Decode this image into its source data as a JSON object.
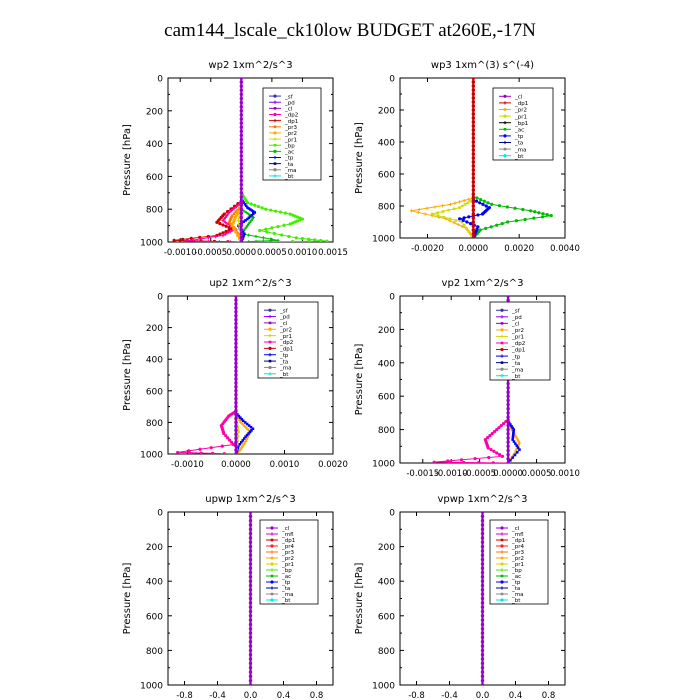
{
  "title": "cam144_lscale_ck10low  BUDGET at260E,-17N",
  "colors": {
    "bt": "#00e5e5",
    "ma": "#888888",
    "ta": "#00008b",
    "tp": "#0000ff",
    "ac": "#00bb00",
    "bp": "#44ee00",
    "pr1": "#ccdd00",
    "pr2": "#ffaa00",
    "pr3": "#ff7700",
    "pr4": "#ff2222",
    "dp1": "#cc0000",
    "dp2": "#ff00aa",
    "cl": "#9900cc",
    "pd": "#8800ff",
    "sf": "#3333aa",
    "mfl": "#cc00cc"
  },
  "chart_data": [
    {
      "type": "line",
      "title": "wp2   1xm^2/s^3",
      "ylabel": "Pressure [hPa]",
      "ylim": [
        1000,
        0
      ],
      "xlim": [
        -0.0012,
        0.0015
      ],
      "xticks": [
        "-0.0010",
        "-0.0005",
        "0.0000",
        "0.0005",
        "0.0010",
        "0.0015"
      ],
      "xtick_values": [
        -0.001,
        -0.0005,
        0,
        0.0005,
        0.001,
        0.0015
      ],
      "yticks": [
        "0",
        "200",
        "400",
        "600",
        "800",
        "1000"
      ],
      "legend": [
        "_sf",
        "_pd",
        "_cl",
        "_dp2",
        "_dp1",
        "_pr3",
        "_pr2",
        "_pr1",
        "_bp",
        "_ac",
        "_tp",
        "_ta",
        "_ma",
        "_bt"
      ],
      "series": [
        {
          "key": "bp",
          "points": [
            [
              0,
              700
            ],
            [
              0.0001,
              760
            ],
            [
              0.0004,
              800
            ],
            [
              0.0008,
              830
            ],
            [
              0.001,
              860
            ],
            [
              0.0008,
              890
            ],
            [
              0.0003,
              930
            ],
            [
              0.0009,
              975
            ],
            [
              0.0014,
              995
            ],
            [
              0,
              1000
            ]
          ]
        },
        {
          "key": "ac",
          "points": [
            [
              0,
              800
            ],
            [
              0.0002,
              850
            ],
            [
              0.0001,
              900
            ],
            [
              0,
              950
            ],
            [
              0.0006,
              990
            ],
            [
              0,
              1000
            ]
          ]
        },
        {
          "key": "tp",
          "points": [
            [
              0,
              740
            ],
            [
              0.0001,
              790
            ],
            [
              0.00022,
              820
            ],
            [
              0.0001,
              860
            ],
            [
              -5e-05,
              900
            ],
            [
              5e-05,
              950
            ],
            [
              0,
              1000
            ]
          ]
        },
        {
          "key": "dp1",
          "points": [
            [
              0,
              750
            ],
            [
              -0.00028,
              830
            ],
            [
              -0.0004,
              880
            ],
            [
              -0.00015,
              920
            ],
            [
              -0.0004,
              960
            ],
            [
              -0.0011,
              990
            ],
            [
              0,
              1000
            ]
          ]
        },
        {
          "key": "dp2",
          "points": [
            [
              0,
              760
            ],
            [
              -0.0002,
              820
            ],
            [
              -0.0003,
              870
            ],
            [
              -0.0001,
              920
            ],
            [
              -0.0003,
              960
            ],
            [
              -0.0009,
              995
            ],
            [
              0,
              1000
            ]
          ]
        },
        {
          "key": "pr3",
          "points": [
            [
              0,
              780
            ],
            [
              -0.00015,
              840
            ],
            [
              -0.0002,
              880
            ],
            [
              -8e-05,
              930
            ],
            [
              0,
              1000
            ]
          ]
        },
        {
          "key": "pr2",
          "points": [
            [
              0,
              790
            ],
            [
              -0.0001,
              850
            ],
            [
              -0.00015,
              900
            ],
            [
              0,
              1000
            ]
          ]
        },
        {
          "key": "pr1",
          "points": [
            [
              0,
              800
            ],
            [
              -5e-05,
              870
            ],
            [
              0,
              1000
            ]
          ]
        },
        {
          "key": "cl",
          "points": [
            [
              0,
              0
            ],
            [
              0,
              1000
            ]
          ]
        }
      ]
    },
    {
      "type": "line",
      "title": "wp3   1xm^(3) s^(-4)",
      "ylabel": "Pressure [hPa]",
      "ylim": [
        1000,
        0
      ],
      "xlim": [
        -0.0032,
        0.004
      ],
      "xticks": [
        "-0.0020",
        "0.0000",
        "0.0020",
        "0.0040"
      ],
      "xtick_values": [
        -0.002,
        0,
        0.002,
        0.004
      ],
      "yticks": [
        "0",
        "200",
        "400",
        "600",
        "800",
        "1000"
      ],
      "legend": [
        "_cl",
        "_dp1",
        "_pr2",
        "_pr1",
        "_bp1",
        "_ac",
        "_tp",
        "_ta",
        "_ma",
        "_bt"
      ],
      "series": [
        {
          "key": "ac",
          "points": [
            [
              0,
              740
            ],
            [
              0.0008,
              790
            ],
            [
              0.0025,
              830
            ],
            [
              0.0034,
              860
            ],
            [
              0.0015,
              900
            ],
            [
              0.0003,
              950
            ],
            [
              0,
              1000
            ]
          ]
        },
        {
          "key": "pr2",
          "points": [
            [
              0,
              750
            ],
            [
              -0.001,
              790
            ],
            [
              -0.0027,
              830
            ],
            [
              -0.0012,
              880
            ],
            [
              -0.0003,
              940
            ],
            [
              0,
              1000
            ]
          ]
        },
        {
          "key": "pr1",
          "points": [
            [
              0,
              760
            ],
            [
              -0.0006,
              810
            ],
            [
              -0.0018,
              850
            ],
            [
              -0.0005,
              900
            ],
            [
              0,
              1000
            ]
          ]
        },
        {
          "key": "tp",
          "points": [
            [
              0,
              760
            ],
            [
              0.0007,
              810
            ],
            [
              0.0004,
              850
            ],
            [
              -0.0006,
              880
            ],
            [
              0.0002,
              930
            ],
            [
              0,
              1000
            ]
          ]
        },
        {
          "key": "dp1",
          "points": [
            [
              0,
              0
            ],
            [
              0,
              1000
            ]
          ]
        }
      ]
    },
    {
      "type": "line",
      "title": "up2   1xm^2/s^3",
      "ylabel": "Pressure [hPa]",
      "ylim": [
        1000,
        0
      ],
      "xlim": [
        -0.0014,
        0.002
      ],
      "xticks": [
        "-0.0010",
        "0.0000",
        "0.0010",
        "0.0020"
      ],
      "xtick_values": [
        -0.001,
        0,
        0.001,
        0.002
      ],
      "yticks": [
        "0",
        "200",
        "400",
        "600",
        "800",
        "1000"
      ],
      "legend": [
        "_sf",
        "_pd",
        "_cl",
        "_pr2",
        "_pr1",
        "_dp2",
        "_dp1",
        "_tp",
        "_ta",
        "_ma",
        "_bt"
      ],
      "series": [
        {
          "key": "dp2",
          "points": [
            [
              0,
              730
            ],
            [
              -0.00015,
              760
            ],
            [
              -0.0003,
              820
            ],
            [
              -0.00025,
              870
            ],
            [
              -5e-05,
              940
            ],
            [
              -0.0012,
              990
            ],
            [
              0,
              1000
            ]
          ]
        },
        {
          "key": "pr2",
          "points": [
            [
              0,
              740
            ],
            [
              0.0001,
              800
            ],
            [
              0.0003,
              860
            ],
            [
              0.0002,
              920
            ],
            [
              0.0001,
              970
            ],
            [
              0,
              1000
            ]
          ]
        },
        {
          "key": "tp",
          "points": [
            [
              0,
              740
            ],
            [
              0.00015,
              790
            ],
            [
              0.00035,
              840
            ],
            [
              0.0002,
              890
            ],
            [
              5e-05,
              950
            ],
            [
              0,
              1000
            ]
          ]
        },
        {
          "key": "pr1",
          "points": [
            [
              0,
              780
            ],
            [
              5e-05,
              860
            ],
            [
              0,
              1000
            ]
          ]
        },
        {
          "key": "cl",
          "points": [
            [
              0,
              0
            ],
            [
              0,
              1000
            ]
          ]
        }
      ]
    },
    {
      "type": "line",
      "title": "vp2   1xm^2/s^3",
      "ylabel": "Pressure [hPa]",
      "ylim": [
        1000,
        0
      ],
      "xlim": [
        -0.0019,
        0.001
      ],
      "xticks": [
        "-0.0015",
        "-0.0010",
        "-0.0005",
        "0.0000",
        "0.0005",
        "0.0010"
      ],
      "xtick_values": [
        -0.0015,
        -0.001,
        -0.0005,
        0,
        0.0005,
        0.001
      ],
      "yticks": [
        "0",
        "200",
        "400",
        "600",
        "800",
        "1000"
      ],
      "legend": [
        "_sf",
        "_pd",
        "_cl",
        "_pr2",
        "_pr1",
        "_dp2",
        "_dp1",
        "_tp",
        "_ta",
        "_ma",
        "_bt"
      ],
      "series": [
        {
          "key": "dp2",
          "points": [
            [
              0,
              740
            ],
            [
              -0.0002,
              800
            ],
            [
              -0.0004,
              860
            ],
            [
              -0.00035,
              910
            ],
            [
              -0.0001,
              960
            ],
            [
              -0.0013,
              995
            ],
            [
              0,
              1000
            ]
          ]
        },
        {
          "key": "pr2",
          "points": [
            [
              0,
              200
            ],
            [
              5e-05,
              260
            ],
            [
              0,
              320
            ],
            [
              0,
              760
            ],
            [
              0.0001,
              820
            ],
            [
              0.0002,
              880
            ],
            [
              0.00012,
              940
            ],
            [
              0,
              1000
            ]
          ]
        },
        {
          "key": "tp",
          "points": [
            [
              0,
              750
            ],
            [
              0.0001,
              800
            ],
            [
              8e-05,
              860
            ],
            [
              0.0002,
              920
            ],
            [
              0,
              1000
            ]
          ]
        },
        {
          "key": "cl",
          "points": [
            [
              0,
              0
            ],
            [
              0,
              1000
            ]
          ]
        }
      ]
    },
    {
      "type": "line",
      "title": "upwp   1xm^2/s^3",
      "ylabel": "Pressure [hPa]",
      "ylim": [
        1000,
        0
      ],
      "xlim": [
        -1,
        1
      ],
      "xticks": [
        "-0.8",
        "-0.4",
        "0.0",
        "0.4",
        "0.8"
      ],
      "xtick_values": [
        -0.8,
        -0.4,
        0,
        0.4,
        0.8
      ],
      "yticks": [
        "0",
        "200",
        "400",
        "600",
        "800",
        "1000"
      ],
      "legend": [
        "_cl",
        "_mfl",
        "_dp1",
        "_pr4",
        "_pr3",
        "_pr2",
        "_pr1",
        "_bp",
        "_ac",
        "_tp",
        "_ta",
        "_ma",
        "_bt"
      ],
      "series": [
        {
          "key": "cl",
          "points": [
            [
              0,
              0
            ],
            [
              0,
              1000
            ]
          ]
        }
      ]
    },
    {
      "type": "line",
      "title": "vpwp   1xm^2/s^3",
      "ylabel": "Pressure [hPa]",
      "ylim": [
        1000,
        0
      ],
      "xlim": [
        -1,
        1
      ],
      "xticks": [
        "-0.8",
        "-0.4",
        "0.0",
        "0.4",
        "0.8"
      ],
      "xtick_values": [
        -0.8,
        -0.4,
        0,
        0.4,
        0.8
      ],
      "yticks": [
        "0",
        "200",
        "400",
        "600",
        "800",
        "1000"
      ],
      "legend": [
        "_cl",
        "_mfl",
        "_dp1",
        "_pr4",
        "_pr3",
        "_pr2",
        "_pr1",
        "_bp",
        "_ac",
        "_tp",
        "_ta",
        "_ma",
        "_bt"
      ],
      "series": [
        {
          "key": "cl",
          "points": [
            [
              0,
              0
            ],
            [
              0,
              1000
            ]
          ]
        }
      ]
    }
  ]
}
